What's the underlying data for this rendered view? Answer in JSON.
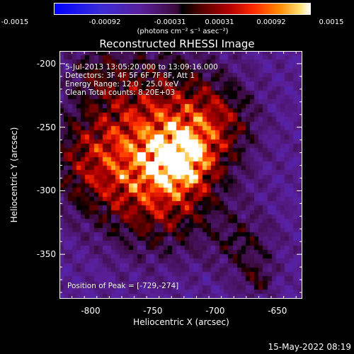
{
  "colorbar": {
    "ticks": [
      "-0.0015",
      "-0.00092",
      "-0.00031",
      "0.00031",
      "0.00092",
      "0.0015"
    ],
    "unit_label": "(photons cm⁻² s⁻¹ asec⁻²)"
  },
  "chart_data": {
    "type": "heatmap",
    "title": "Reconstructed RHESSI Image",
    "xlabel": "Heliocentric X (arcsec)",
    "ylabel": "Heliocentric Y (arcsec)",
    "xlim": [
      -825,
      -630
    ],
    "ylim": [
      -385,
      -190
    ],
    "xticks": [
      -800,
      -750,
      -700,
      -650
    ],
    "yticks": [
      -200,
      -250,
      -300,
      -350
    ],
    "value_range": [
      -0.0015,
      0.0015
    ],
    "colormap": "blue-purple-black-red-yellow-white",
    "peak": {
      "x": -729,
      "y": -274
    },
    "annotations": {
      "time_range": "5-Jul-2013 13:05:20.000 to 13:09:16.000",
      "detectors": "Detectors: 3F 4F 5F 6F 7F 8F, Att 1",
      "energy": "Energy Range: 12.0 - 25.0 keV",
      "clean": "Clean    Total counts: 8.20E+03",
      "peak_text": "Position of Peak = [-729,-274]"
    }
  },
  "footer": {
    "datestamp": "15-May-2022 08:19"
  }
}
